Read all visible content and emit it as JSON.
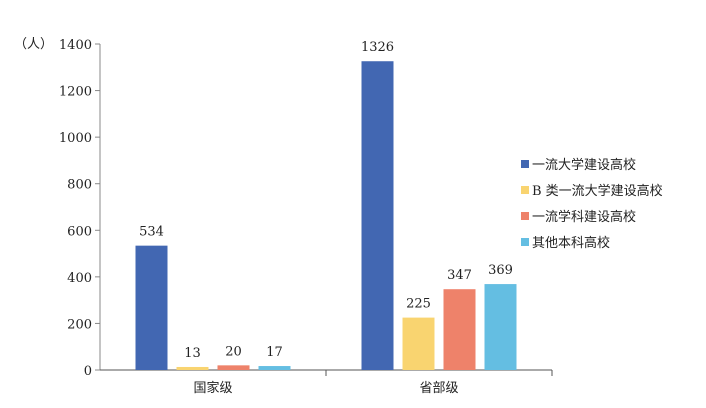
{
  "chart_data": {
    "type": "bar",
    "title": "",
    "xlabel": "",
    "ylabel": "（人）",
    "ylim": [
      0,
      1400
    ],
    "yticks": [
      0,
      200,
      400,
      600,
      800,
      1000,
      1200,
      1400
    ],
    "categories": [
      "国家级",
      "省部级"
    ],
    "series": [
      {
        "name": "一流大学建设高校",
        "color": "#4267B2",
        "values": [
          534,
          1326
        ]
      },
      {
        "name": "B 类一流大学建设高校",
        "color": "#F9D470",
        "values": [
          13,
          225
        ]
      },
      {
        "name": "一流学科建设高校",
        "color": "#EE826A",
        "values": [
          20,
          347
        ]
      },
      {
        "name": "其他本科高校",
        "color": "#64BEE2",
        "values": [
          17,
          369
        ]
      }
    ],
    "grid": false,
    "legend_position": "right"
  }
}
